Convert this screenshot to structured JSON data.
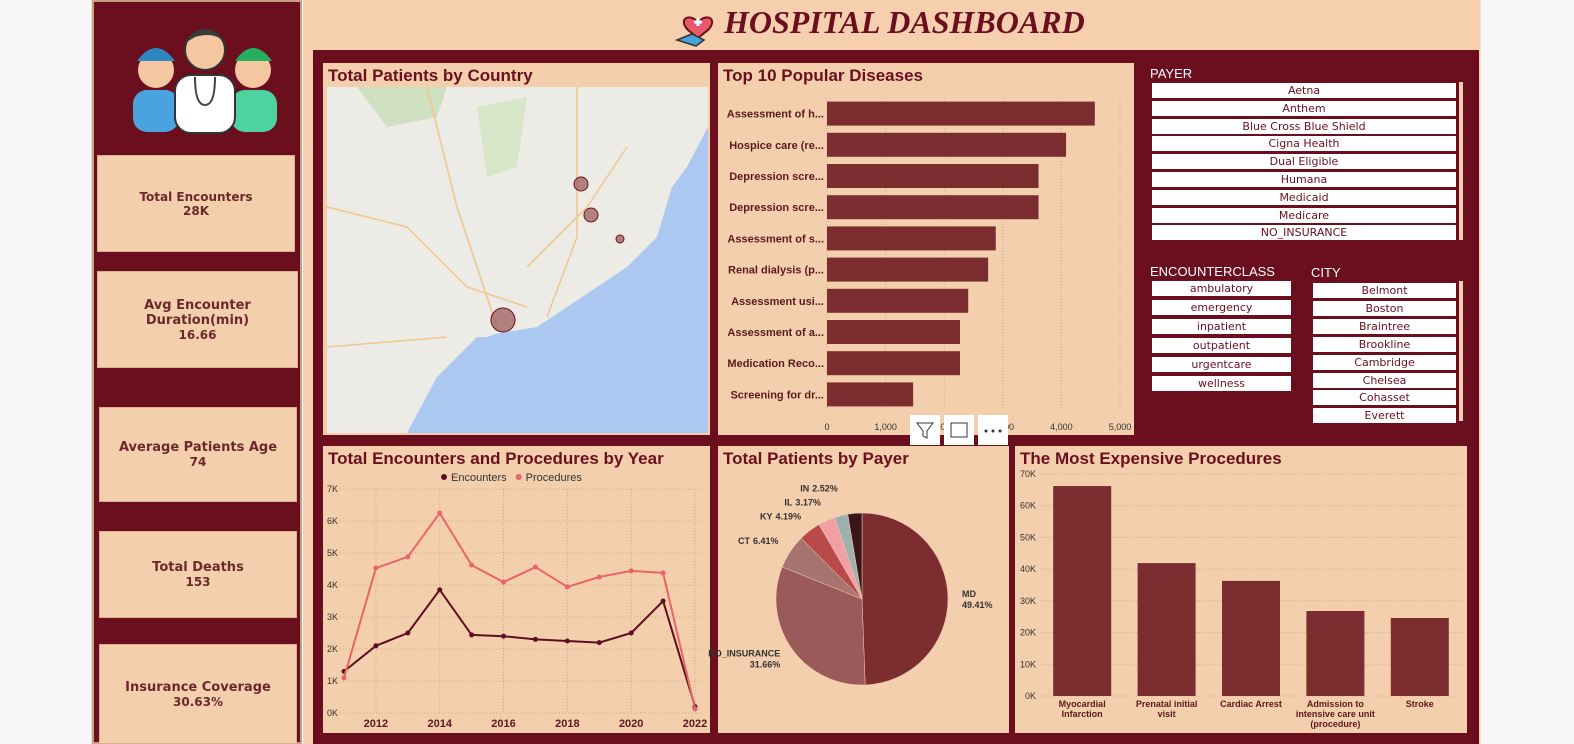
{
  "header": {
    "title": "HOSPITAL DASHBOARD"
  },
  "kpis": [
    {
      "label": "Total Encounters",
      "value": "28K"
    },
    {
      "label": "Avg Encounter Duration(min)",
      "value": "16.66"
    },
    {
      "label": "Average Patients Age",
      "value": "74"
    },
    {
      "label": "Total Deaths",
      "value": "153"
    },
    {
      "label": "Insurance Coverage",
      "value": "30.63%"
    }
  ],
  "map": {
    "title": "Total Patients by Country"
  },
  "slicers": {
    "payer": {
      "title": "PAYER",
      "items": [
        "Aetna",
        "Anthem",
        "Blue Cross Blue Shield",
        "Cigna Health",
        "Dual Eligible",
        "Humana",
        "Medicaid",
        "Medicare",
        "NO_INSURANCE"
      ]
    },
    "encounterclass": {
      "title": "ENCOUNTERCLASS",
      "items": [
        "ambulatory",
        "emergency",
        "inpatient",
        "outpatient",
        "urgentcare",
        "wellness"
      ]
    },
    "city": {
      "title": "CITY",
      "items": [
        "Belmont",
        "Boston",
        "Braintree",
        "Brookline",
        "Cambridge",
        "Chelsea",
        "Cohasset",
        "Everett"
      ]
    }
  },
  "chart_data": [
    {
      "type": "bar",
      "horizontal": true,
      "title": "Top 10 Popular Diseases",
      "categories": [
        "Assessment of h...",
        "Hospice care (re...",
        "Depression scre...",
        "Depression scre...",
        "Assessment of s...",
        "Renal dialysis (p...",
        "Assessment usi...",
        "Assessment of a...",
        "Medication Reco...",
        "Screening for dr..."
      ],
      "values": [
        4570,
        4080,
        3610,
        3610,
        2880,
        2750,
        2410,
        2270,
        2270,
        1470
      ],
      "color": "#7b2d30",
      "grid": true,
      "xlim": [
        0,
        5000
      ],
      "xticks": [
        0,
        {
          "value": 1000,
          "label": "1,000"
        },
        {
          "value": 2000,
          "label": "2,000"
        },
        {
          "value": 3000,
          "label": "3,000"
        },
        {
          "value": 4000,
          "label": "4,000"
        },
        {
          "value": 5000,
          "label": "5,000"
        }
      ]
    },
    {
      "type": "line",
      "title": "Total Encounters and Procedures by Year",
      "x": [
        2011,
        2012,
        2013,
        2014,
        2015,
        2016,
        2017,
        2018,
        2019,
        2020,
        2021,
        2022
      ],
      "series": [
        {
          "name": "Encounters",
          "color": "#5e0f1f",
          "values": [
            1300,
            2100,
            2500,
            3850,
            2440,
            2400,
            2300,
            2250,
            2200,
            2500,
            3500,
            200
          ]
        },
        {
          "name": "Procedures",
          "color": "#e8646a",
          "values": [
            1100,
            4530,
            4880,
            6250,
            4620,
            4090,
            4560,
            3940,
            4250,
            4440,
            4380,
            130
          ]
        }
      ],
      "grid": true,
      "xlim": [
        2011,
        2022
      ],
      "xticks": [
        2012,
        2014,
        2016,
        2018,
        2020,
        2022
      ],
      "ylim": [
        0,
        7000
      ],
      "yticks": [
        {
          "value": 0,
          "label": "0K"
        },
        {
          "value": 1000,
          "label": "1K"
        },
        {
          "value": 2000,
          "label": "2K"
        },
        {
          "value": 3000,
          "label": "3K"
        },
        {
          "value": 4000,
          "label": "4K"
        },
        {
          "value": 5000,
          "label": "5K"
        },
        {
          "value": 6000,
          "label": "6K"
        },
        {
          "value": 7000,
          "label": "7K"
        }
      ]
    },
    {
      "type": "pie",
      "title": "Total Patients by Payer",
      "categories": [
        "MD",
        "NO_INSURANCE",
        "CT",
        "KY",
        "IL",
        "IN",
        null
      ],
      "values": [
        49.41,
        31.66,
        6.41,
        4.19,
        3.17,
        2.52,
        2.64
      ],
      "value_labels": [
        "49.41%",
        "31.66%",
        "6.41%",
        "4.19%",
        "3.17%",
        "2.52%",
        null
      ],
      "colors": [
        "#7b2d30",
        "#9b5a5a",
        "#a87470",
        "#b84a4a",
        "#f0a0a5",
        "#9fb0b0",
        "#3a1518"
      ]
    },
    {
      "type": "bar",
      "title": "The Most Expensive Procedures",
      "categories": [
        "Myocardial Infarction",
        "Prenatal initial visit",
        "Cardiac Arrest",
        "Admission to intensive care unit (procedure)",
        "Stroke"
      ],
      "values": [
        66200,
        41900,
        36300,
        26800,
        24600
      ],
      "color": "#7b2d30",
      "grid": true,
      "ylim": [
        0,
        70000
      ],
      "yticks": [
        {
          "value": 0,
          "label": "0K"
        },
        {
          "value": 10000,
          "label": "10K"
        },
        {
          "value": 20000,
          "label": "20K"
        },
        {
          "value": 30000,
          "label": "30K"
        },
        {
          "value": 40000,
          "label": "40K"
        },
        {
          "value": 50000,
          "label": "50K"
        },
        {
          "value": 60000,
          "label": "60K"
        },
        {
          "value": 70000,
          "label": "70K"
        }
      ]
    }
  ]
}
